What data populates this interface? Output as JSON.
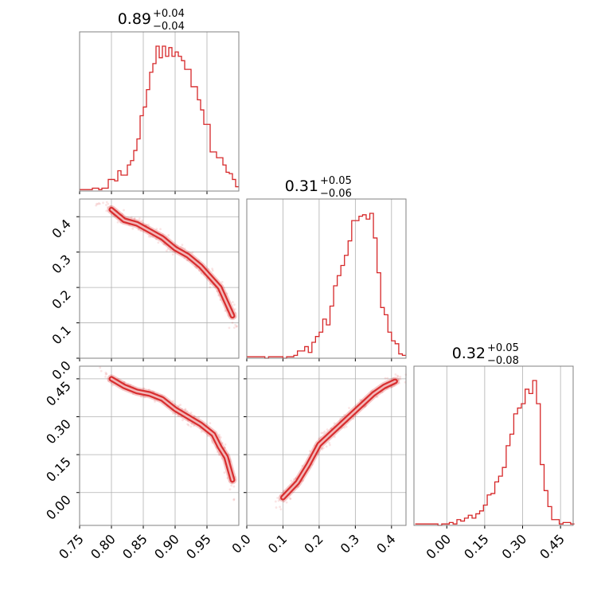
{
  "colors": {
    "accent": "#d62728",
    "grid": "#b0b0b0",
    "frame": "#808080"
  },
  "chart_data": [
    {
      "type": "histogram",
      "panel": "p0",
      "title": {
        "value": "0.89",
        "plus": "+0.04",
        "minus": "−0.04"
      },
      "xlim": [
        0.75,
        1.0
      ],
      "bins": [
        [
          0.75,
          0.01
        ],
        [
          0.755,
          0.01
        ],
        [
          0.76,
          0.01
        ],
        [
          0.765,
          0.01
        ],
        [
          0.77,
          0.02
        ],
        [
          0.775,
          0.02
        ],
        [
          0.78,
          0.01
        ],
        [
          0.785,
          0.02
        ],
        [
          0.79,
          0.02
        ],
        [
          0.795,
          0.08
        ],
        [
          0.8,
          0.08
        ],
        [
          0.805,
          0.07
        ],
        [
          0.81,
          0.14
        ],
        [
          0.815,
          0.11
        ],
        [
          0.82,
          0.11
        ],
        [
          0.825,
          0.18
        ],
        [
          0.83,
          0.21
        ],
        [
          0.835,
          0.28
        ],
        [
          0.84,
          0.36
        ],
        [
          0.845,
          0.52
        ],
        [
          0.85,
          0.58
        ],
        [
          0.855,
          0.7
        ],
        [
          0.86,
          0.82
        ],
        [
          0.865,
          0.88
        ],
        [
          0.87,
          1.0
        ],
        [
          0.875,
          0.92
        ],
        [
          0.88,
          1.0
        ],
        [
          0.885,
          0.93
        ],
        [
          0.89,
          0.99
        ],
        [
          0.895,
          0.93
        ],
        [
          0.9,
          0.96
        ],
        [
          0.905,
          0.93
        ],
        [
          0.91,
          0.9
        ],
        [
          0.915,
          0.84
        ],
        [
          0.92,
          0.84
        ],
        [
          0.925,
          0.72
        ],
        [
          0.93,
          0.72
        ],
        [
          0.935,
          0.63
        ],
        [
          0.94,
          0.56
        ],
        [
          0.945,
          0.46
        ],
        [
          0.95,
          0.46
        ],
        [
          0.955,
          0.27
        ],
        [
          0.96,
          0.27
        ],
        [
          0.965,
          0.23
        ],
        [
          0.97,
          0.23
        ],
        [
          0.975,
          0.18
        ],
        [
          0.98,
          0.13
        ],
        [
          0.985,
          0.12
        ],
        [
          0.99,
          0.08
        ],
        [
          0.995,
          0.03
        ]
      ]
    },
    {
      "type": "histogram",
      "panel": "p11",
      "title": {
        "value": "0.31",
        "plus": "+0.05",
        "minus": "−0.06"
      },
      "xlim": [
        0.0,
        0.44
      ],
      "bins": [
        [
          0.0,
          0.01
        ],
        [
          0.01,
          0.01
        ],
        [
          0.02,
          0.01
        ],
        [
          0.03,
          0.01
        ],
        [
          0.04,
          0.01
        ],
        [
          0.05,
          0.0
        ],
        [
          0.06,
          0.01
        ],
        [
          0.07,
          0.01
        ],
        [
          0.08,
          0.01
        ],
        [
          0.09,
          0.01
        ],
        [
          0.1,
          0.0
        ],
        [
          0.11,
          0.01
        ],
        [
          0.12,
          0.01
        ],
        [
          0.13,
          0.02
        ],
        [
          0.14,
          0.05
        ],
        [
          0.15,
          0.05
        ],
        [
          0.16,
          0.08
        ],
        [
          0.17,
          0.04
        ],
        [
          0.18,
          0.11
        ],
        [
          0.19,
          0.15
        ],
        [
          0.2,
          0.18
        ],
        [
          0.21,
          0.27
        ],
        [
          0.22,
          0.23
        ],
        [
          0.23,
          0.36
        ],
        [
          0.24,
          0.5
        ],
        [
          0.25,
          0.57
        ],
        [
          0.26,
          0.64
        ],
        [
          0.27,
          0.71
        ],
        [
          0.28,
          0.81
        ],
        [
          0.29,
          0.95
        ],
        [
          0.3,
          0.95
        ],
        [
          0.31,
          0.98
        ],
        [
          0.32,
          0.99
        ],
        [
          0.33,
          0.96
        ],
        [
          0.34,
          1.0
        ],
        [
          0.35,
          0.83
        ],
        [
          0.36,
          0.59
        ],
        [
          0.37,
          0.35
        ],
        [
          0.38,
          0.3
        ],
        [
          0.39,
          0.18
        ],
        [
          0.4,
          0.12
        ],
        [
          0.41,
          0.1
        ],
        [
          0.42,
          0.03
        ],
        [
          0.43,
          0.02
        ]
      ]
    },
    {
      "type": "histogram",
      "panel": "p22",
      "title": {
        "value": "0.32",
        "plus": "+0.05",
        "minus": "−0.08"
      },
      "xlim": [
        -0.13,
        0.5
      ],
      "bins": [
        [
          -0.125,
          0.01
        ],
        [
          -0.11,
          0.01
        ],
        [
          -0.095,
          0.01
        ],
        [
          -0.08,
          0.01
        ],
        [
          -0.065,
          0.01
        ],
        [
          -0.05,
          0.01
        ],
        [
          -0.035,
          0.0
        ],
        [
          -0.02,
          0.01
        ],
        [
          -0.005,
          0.01
        ],
        [
          0.01,
          0.02
        ],
        [
          0.025,
          0.01
        ],
        [
          0.04,
          0.04
        ],
        [
          0.055,
          0.03
        ],
        [
          0.07,
          0.05
        ],
        [
          0.085,
          0.07
        ],
        [
          0.1,
          0.05
        ],
        [
          0.115,
          0.08
        ],
        [
          0.13,
          0.1
        ],
        [
          0.145,
          0.14
        ],
        [
          0.16,
          0.21
        ],
        [
          0.175,
          0.22
        ],
        [
          0.19,
          0.3
        ],
        [
          0.205,
          0.34
        ],
        [
          0.22,
          0.4
        ],
        [
          0.235,
          0.55
        ],
        [
          0.25,
          0.63
        ],
        [
          0.265,
          0.77
        ],
        [
          0.28,
          0.81
        ],
        [
          0.295,
          0.84
        ],
        [
          0.31,
          0.94
        ],
        [
          0.325,
          0.91
        ],
        [
          0.34,
          1.0
        ],
        [
          0.355,
          0.84
        ],
        [
          0.37,
          0.42
        ],
        [
          0.385,
          0.24
        ],
        [
          0.4,
          0.13
        ],
        [
          0.415,
          0.04
        ],
        [
          0.43,
          0.04
        ],
        [
          0.445,
          0.01
        ],
        [
          0.46,
          0.02
        ],
        [
          0.475,
          0.02
        ],
        [
          0.49,
          0.01
        ]
      ]
    },
    {
      "type": "scatter",
      "panel": "p10",
      "xlim": [
        0.75,
        1.0
      ],
      "ylim": [
        0.0,
        0.45
      ],
      "ridge": [
        [
          0.78,
          0.43
        ],
        [
          0.8,
          0.42
        ],
        [
          0.82,
          0.39
        ],
        [
          0.84,
          0.38
        ],
        [
          0.86,
          0.36
        ],
        [
          0.88,
          0.34
        ],
        [
          0.9,
          0.31
        ],
        [
          0.92,
          0.29
        ],
        [
          0.94,
          0.26
        ],
        [
          0.96,
          0.22
        ],
        [
          0.97,
          0.2
        ],
        [
          0.98,
          0.16
        ],
        [
          0.99,
          0.12
        ],
        [
          0.995,
          0.08
        ]
      ]
    },
    {
      "type": "scatter",
      "panel": "p20",
      "xlim": [
        0.75,
        1.0
      ],
      "ylim": [
        -0.13,
        0.5
      ],
      "ridge": [
        [
          0.78,
          0.48
        ],
        [
          0.8,
          0.45
        ],
        [
          0.82,
          0.42
        ],
        [
          0.84,
          0.4
        ],
        [
          0.86,
          0.39
        ],
        [
          0.88,
          0.37
        ],
        [
          0.9,
          0.33
        ],
        [
          0.92,
          0.3
        ],
        [
          0.94,
          0.27
        ],
        [
          0.96,
          0.23
        ],
        [
          0.97,
          0.18
        ],
        [
          0.98,
          0.14
        ],
        [
          0.99,
          0.05
        ],
        [
          0.995,
          -0.05
        ]
      ]
    },
    {
      "type": "scatter",
      "panel": "p21",
      "xlim": [
        0.0,
        0.44
      ],
      "ylim": [
        -0.13,
        0.5
      ],
      "ridge": [
        [
          0.06,
          -0.08
        ],
        [
          0.1,
          -0.02
        ],
        [
          0.14,
          0.04
        ],
        [
          0.17,
          0.11
        ],
        [
          0.2,
          0.19
        ],
        [
          0.23,
          0.23
        ],
        [
          0.26,
          0.27
        ],
        [
          0.29,
          0.31
        ],
        [
          0.32,
          0.35
        ],
        [
          0.35,
          0.39
        ],
        [
          0.38,
          0.42
        ],
        [
          0.41,
          0.44
        ],
        [
          0.43,
          0.46
        ]
      ]
    }
  ],
  "axes": {
    "p10": {
      "yticks": [
        [
          0.0,
          "0.0"
        ],
        [
          0.1,
          "0.1"
        ],
        [
          0.2,
          "0.2"
        ],
        [
          0.3,
          "0.3"
        ],
        [
          0.4,
          "0.4"
        ]
      ]
    },
    "p20": {
      "xticks": [
        [
          0.75,
          "0.75"
        ],
        [
          0.8,
          "0.80"
        ],
        [
          0.85,
          "0.85"
        ],
        [
          0.9,
          "0.90"
        ],
        [
          0.95,
          "0.95"
        ]
      ],
      "yticks": [
        [
          0.0,
          "0.00"
        ],
        [
          0.15,
          "0.15"
        ],
        [
          0.3,
          "0.30"
        ],
        [
          0.45,
          "0.45"
        ]
      ]
    },
    "p21": {
      "xticks": [
        [
          0.0,
          "0.0"
        ],
        [
          0.1,
          "0.1"
        ],
        [
          0.2,
          "0.2"
        ],
        [
          0.3,
          "0.3"
        ],
        [
          0.4,
          "0.4"
        ]
      ]
    },
    "p22": {
      "xticks": [
        [
          0.0,
          "0.00"
        ],
        [
          0.15,
          "0.15"
        ],
        [
          0.3,
          "0.30"
        ],
        [
          0.45,
          "0.45"
        ]
      ]
    }
  }
}
